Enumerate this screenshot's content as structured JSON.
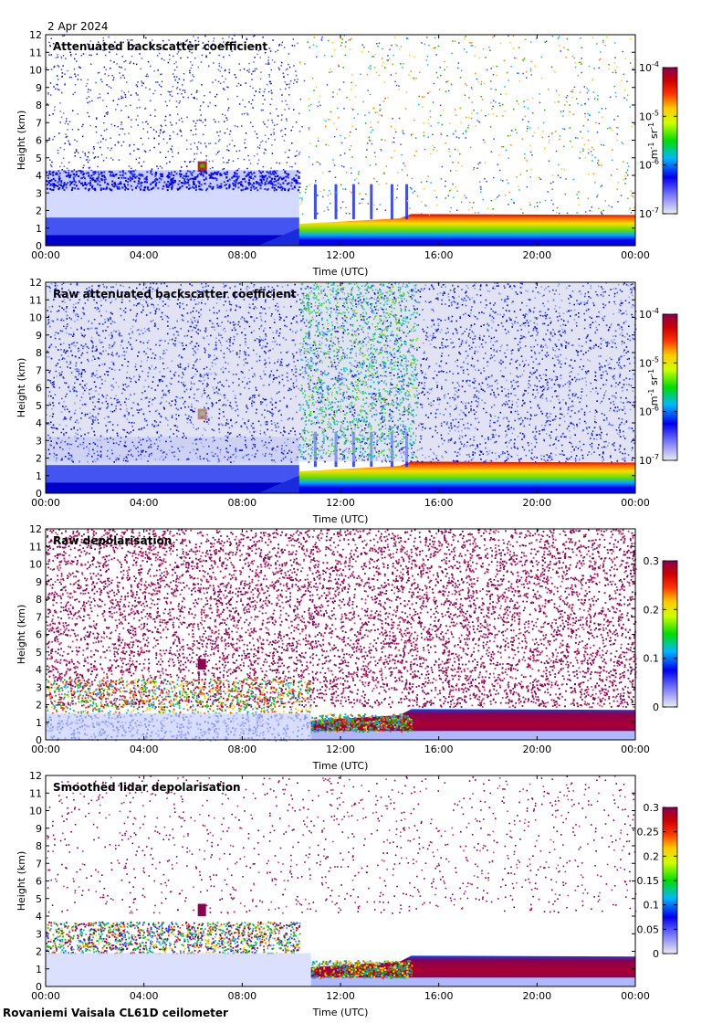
{
  "date": "2 Apr 2024",
  "footer": "Rovaniemi Vaisala CL61D ceilometer",
  "chart_data": [
    {
      "type": "heatmap",
      "title": "Attenuated backscatter coefficient",
      "xlabel": "Time (UTC)",
      "ylabel": "Height (km)",
      "x_ticks": [
        "00:00",
        "04:00",
        "08:00",
        "12:00",
        "16:00",
        "20:00",
        "00:00"
      ],
      "y_ticks": [
        0,
        1,
        2,
        3,
        4,
        5,
        6,
        7,
        8,
        9,
        10,
        11,
        12
      ],
      "ylim": [
        0,
        12
      ],
      "colorbar": {
        "scale": "log",
        "ticks": [
          "10-7",
          "10-6",
          "10-5",
          "10-4"
        ],
        "label": "m-1 sr-1"
      },
      "noise": "sparse"
    },
    {
      "type": "heatmap",
      "title": "Raw attenuated backscatter coefficient",
      "xlabel": "Time (UTC)",
      "ylabel": "Height (km)",
      "x_ticks": [
        "00:00",
        "04:00",
        "08:00",
        "12:00",
        "16:00",
        "20:00",
        "00:00"
      ],
      "y_ticks": [
        0,
        1,
        2,
        3,
        4,
        5,
        6,
        7,
        8,
        9,
        10,
        11,
        12
      ],
      "ylim": [
        0,
        12
      ],
      "colorbar": {
        "scale": "log",
        "ticks": [
          "10-7",
          "10-6",
          "10-5",
          "10-4"
        ],
        "label": "m-1 sr-1"
      },
      "noise": "dense-blue"
    },
    {
      "type": "heatmap",
      "title": "Raw depolarisation",
      "xlabel": "Time (UTC)",
      "ylabel": "Height (km)",
      "x_ticks": [
        "00:00",
        "04:00",
        "08:00",
        "12:00",
        "16:00",
        "20:00",
        "00:00"
      ],
      "y_ticks": [
        0,
        1,
        2,
        3,
        4,
        5,
        6,
        7,
        8,
        9,
        10,
        11,
        12
      ],
      "ylim": [
        0,
        12
      ],
      "colorbar": {
        "scale": "linear",
        "ticks": [
          "0",
          "0.1",
          "0.2",
          "0.3"
        ],
        "label": ""
      },
      "noise": "dense-purple"
    },
    {
      "type": "heatmap",
      "title": "Smoothed lidar depolarisation",
      "xlabel": "Time (UTC)",
      "ylabel": "Height (km)",
      "x_ticks": [
        "00:00",
        "04:00",
        "08:00",
        "12:00",
        "16:00",
        "20:00",
        "00:00"
      ],
      "y_ticks": [
        0,
        1,
        2,
        3,
        4,
        5,
        6,
        7,
        8,
        9,
        10,
        11,
        12
      ],
      "ylim": [
        0,
        12
      ],
      "colorbar": {
        "scale": "linear",
        "ticks": [
          "0",
          "0.05",
          "0.1",
          "0.15",
          "0.2",
          "0.25",
          "0.3"
        ],
        "label": ""
      },
      "noise": "sparse-purple"
    }
  ]
}
